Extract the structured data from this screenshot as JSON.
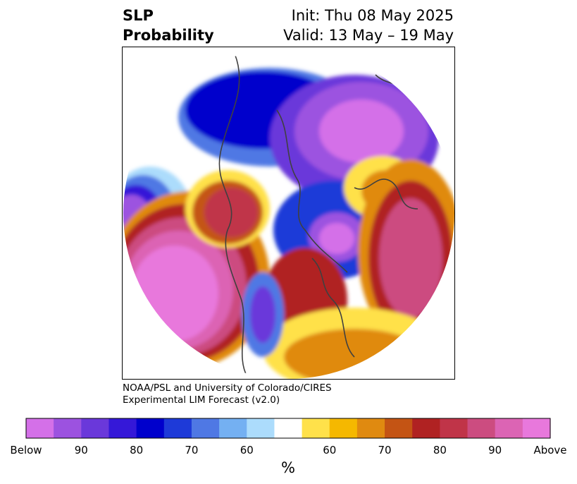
{
  "header": {
    "left_line1": "SLP",
    "left_line2": "Probability",
    "right_line1": "Init: Thu 08 May 2025",
    "right_line2": "Valid: 13 May – 19 May"
  },
  "credit": {
    "line1": "NOAA/PSL and University of Colorado/CIRES",
    "line2": "Experimental LIM Forecast (v2.0)"
  },
  "colorbar": {
    "unit": "%",
    "tick_labels": [
      "Below",
      "90",
      "80",
      "70",
      "60",
      "60",
      "70",
      "80",
      "90",
      "Above"
    ],
    "colors": [
      "#d470e8",
      "#9c52e0",
      "#6a38da",
      "#3518d8",
      "#0000cc",
      "#1e3ad8",
      "#4f78e4",
      "#74b0f2",
      "#acdcfc",
      "#ffffff",
      "#ffe14a",
      "#f5b800",
      "#e08a10",
      "#c45414",
      "#b02222",
      "#c03448",
      "#cc4c80",
      "#dc64b4",
      "#e878dc"
    ]
  },
  "map": {
    "colors": {
      "coast": "#404040",
      "below_strong": "#d470e8",
      "below": "#0000cc",
      "above": "#b02222",
      "above_strong": "#e878dc",
      "neutral": "#ffffff"
    }
  }
}
